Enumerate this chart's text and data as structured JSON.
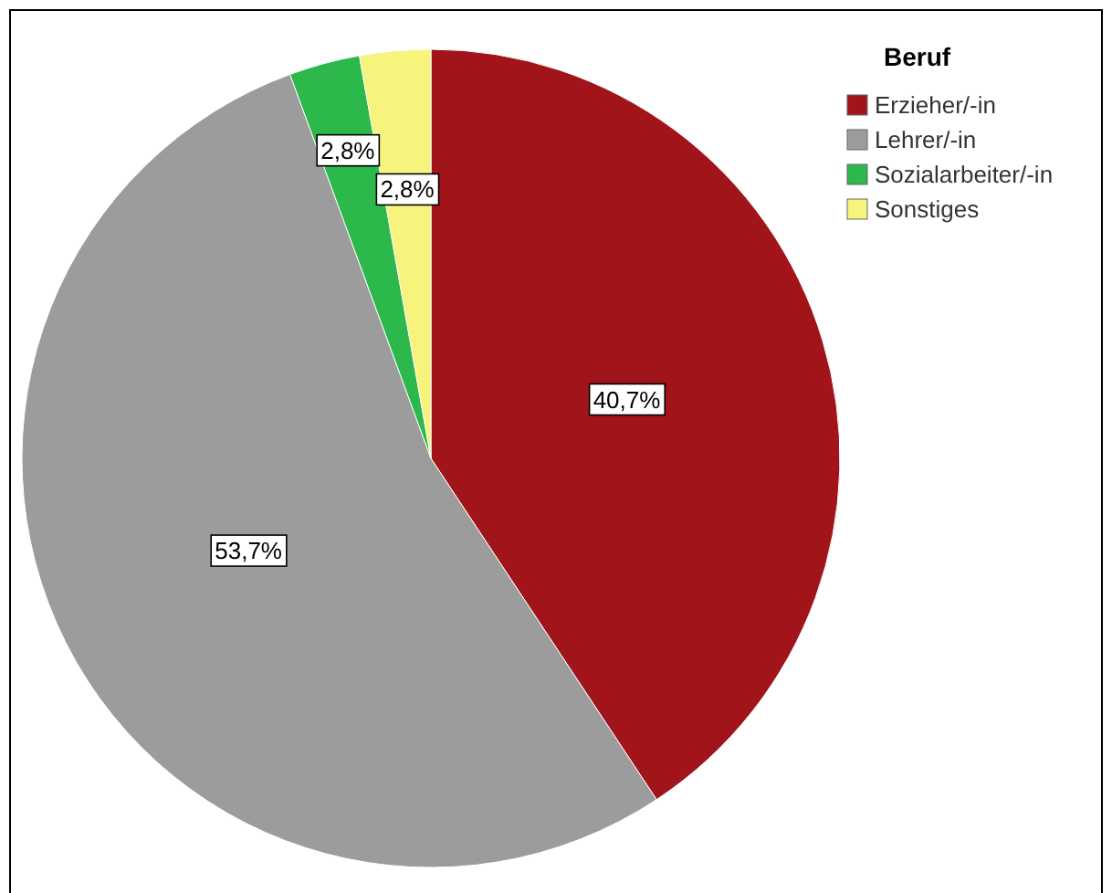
{
  "chart_data": {
    "type": "pie",
    "legend_title": "Beruf",
    "legend": "top right",
    "categories": [
      "Erzieher/-in",
      "Lehrer/-in",
      "Sozialarbeiter/-in",
      "Sonstiges"
    ],
    "values": [
      40.7,
      53.7,
      2.8,
      2.8
    ],
    "colors": [
      "#a0141a",
      "#9c9c9c",
      "#2db84b",
      "#f6f47c"
    ],
    "value_labels": [
      "40,7%",
      "53,7%",
      "2,8%",
      "2,8%"
    ]
  }
}
